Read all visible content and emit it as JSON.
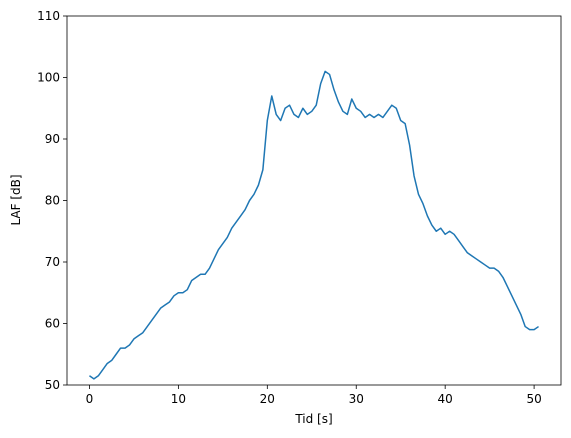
{
  "chart_data": {
    "type": "line",
    "xlabel": "Tid [s]",
    "ylabel": "LAF [dB]",
    "x": [
      0,
      0.5,
      1,
      1.5,
      2,
      2.5,
      3,
      3.5,
      4,
      4.5,
      5,
      5.5,
      6,
      6.5,
      7,
      7.5,
      8,
      8.5,
      9,
      9.5,
      10,
      10.5,
      11,
      11.5,
      12,
      12.5,
      13,
      13.5,
      14,
      14.5,
      15,
      15.5,
      16,
      16.5,
      17,
      17.5,
      18,
      18.5,
      19,
      19.5,
      20,
      20.5,
      21,
      21.5,
      22,
      22.5,
      23,
      23.5,
      24,
      24.5,
      25,
      25.5,
      26,
      26.5,
      27,
      27.5,
      28,
      28.5,
      29,
      29.5,
      30,
      30.5,
      31,
      31.5,
      32,
      32.5,
      33,
      33.5,
      34,
      34.5,
      35,
      35.5,
      36,
      36.5,
      37,
      37.5,
      38,
      38.5,
      39,
      39.5,
      40,
      40.5,
      41,
      41.5,
      42,
      42.5,
      43,
      43.5,
      44,
      44.5,
      45,
      45.5,
      46,
      46.5,
      47,
      47.5,
      48,
      48.5,
      49,
      49.5,
      50,
      50.5
    ],
    "series": [
      {
        "color": "#1f77b4",
        "values": [
          51.5,
          51,
          51.5,
          52.5,
          53.5,
          54,
          55,
          56,
          56,
          56.5,
          57.5,
          58,
          58.5,
          59.5,
          60.5,
          61.5,
          62.5,
          63,
          63.5,
          64.5,
          65,
          65,
          65.5,
          67,
          67.5,
          68,
          68,
          69,
          70.5,
          72,
          73,
          74,
          75.5,
          76.5,
          77.5,
          78.5,
          80,
          81,
          82.5,
          85,
          93,
          97,
          94,
          93,
          95,
          95.5,
          94,
          93.5,
          95,
          94,
          94.5,
          95.5,
          99,
          101,
          100.5,
          98,
          96,
          94.5,
          94,
          96.5,
          95,
          94.5,
          93.5,
          94,
          93.5,
          94,
          93.5,
          94.5,
          95.5,
          95,
          93,
          92.5,
          89,
          84,
          81,
          79.5,
          77.5,
          76,
          75,
          75.5,
          74.5,
          75,
          74.5,
          73.5,
          72.5,
          71.5,
          71,
          70.5,
          70,
          69.5,
          69,
          69,
          68.5,
          67.5,
          66,
          64.5,
          63,
          61.5,
          59.5,
          59,
          59,
          59.5
        ]
      }
    ],
    "xlim": [
      -2.525,
      53.025
    ],
    "ylim": [
      50,
      110
    ],
    "xticks": [
      0,
      10,
      20,
      30,
      40,
      50
    ],
    "yticks": [
      50,
      60,
      70,
      80,
      90,
      100,
      110
    ]
  }
}
